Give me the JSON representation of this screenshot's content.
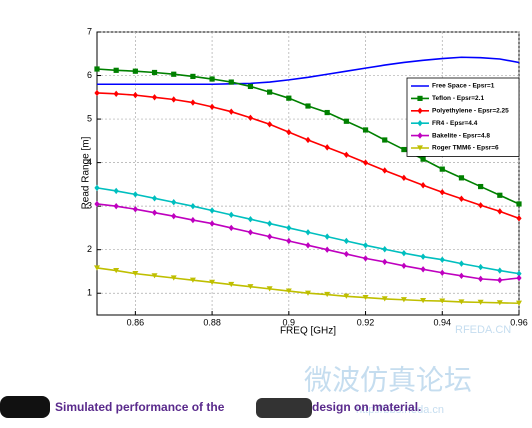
{
  "chart_data": {
    "type": "line",
    "ylabel": "Read Range [m]",
    "xlabel": "FREQ [GHz]",
    "x": [
      0.85,
      0.855,
      0.86,
      0.865,
      0.87,
      0.875,
      0.88,
      0.885,
      0.89,
      0.895,
      0.9,
      0.905,
      0.91,
      0.915,
      0.92,
      0.925,
      0.93,
      0.935,
      0.94,
      0.945,
      0.95,
      0.955,
      0.96
    ],
    "series": [
      {
        "name": "Free Space - Epsr=1",
        "color": "#0000ff",
        "marker": "none",
        "values": [
          5.8,
          5.8,
          5.8,
          5.8,
          5.8,
          5.8,
          5.8,
          5.81,
          5.82,
          5.85,
          5.9,
          5.96,
          6.03,
          6.1,
          6.17,
          6.24,
          6.3,
          6.35,
          6.39,
          6.42,
          6.41,
          6.38,
          6.3
        ]
      },
      {
        "name": "Teflon - Epsr=2.1",
        "color": "#008000",
        "marker": "square",
        "values": [
          6.15,
          6.12,
          6.1,
          6.07,
          6.03,
          5.98,
          5.92,
          5.85,
          5.75,
          5.62,
          5.48,
          5.3,
          5.15,
          4.95,
          4.75,
          4.52,
          4.3,
          4.08,
          3.85,
          3.65,
          3.45,
          3.25,
          3.05
        ]
      },
      {
        "name": "Polyethylene - Epsr=2.25",
        "color": "#ff0000",
        "marker": "diamond",
        "values": [
          5.6,
          5.58,
          5.55,
          5.5,
          5.45,
          5.38,
          5.28,
          5.17,
          5.03,
          4.88,
          4.7,
          4.52,
          4.35,
          4.18,
          4.0,
          3.82,
          3.65,
          3.48,
          3.32,
          3.17,
          3.02,
          2.88,
          2.72
        ]
      },
      {
        "name": "FR4 - Epsr=4.4",
        "color": "#00bfbf",
        "marker": "diamond",
        "values": [
          3.42,
          3.35,
          3.27,
          3.18,
          3.09,
          3.0,
          2.9,
          2.8,
          2.7,
          2.6,
          2.5,
          2.4,
          2.3,
          2.2,
          2.1,
          2.01,
          1.92,
          1.84,
          1.77,
          1.68,
          1.6,
          1.52,
          1.45
        ]
      },
      {
        "name": "Bakelite - Epsr=4.8",
        "color": "#bf00bf",
        "marker": "diamond",
        "values": [
          3.05,
          3.0,
          2.93,
          2.85,
          2.77,
          2.68,
          2.6,
          2.5,
          2.4,
          2.3,
          2.2,
          2.1,
          2.0,
          1.9,
          1.8,
          1.72,
          1.63,
          1.55,
          1.47,
          1.4,
          1.33,
          1.3,
          1.35
        ]
      },
      {
        "name": "Roger TMM6 - Epsr=6",
        "color": "#bfbf00",
        "marker": "triangle",
        "values": [
          1.58,
          1.52,
          1.45,
          1.4,
          1.35,
          1.3,
          1.25,
          1.2,
          1.15,
          1.1,
          1.05,
          1.0,
          0.97,
          0.93,
          0.9,
          0.87,
          0.85,
          0.83,
          0.82,
          0.8,
          0.79,
          0.78,
          0.77
        ]
      }
    ],
    "xlim": [
      0.85,
      0.96
    ],
    "ylim": [
      0.5,
      7
    ],
    "xticks": [
      0.86,
      0.88,
      0.9,
      0.92,
      0.94,
      0.96
    ],
    "yticks": [
      1,
      2,
      3,
      4,
      5,
      6,
      7
    ],
    "grid": true,
    "legend": "upper right"
  },
  "caption": {
    "prefix": "Simulated performance of the",
    "suffix": "design on material."
  },
  "watermark": {
    "site": "RFEDA.CN",
    "forum": "微波仿真论坛",
    "url": "http://bbs.rfeda.cn"
  }
}
